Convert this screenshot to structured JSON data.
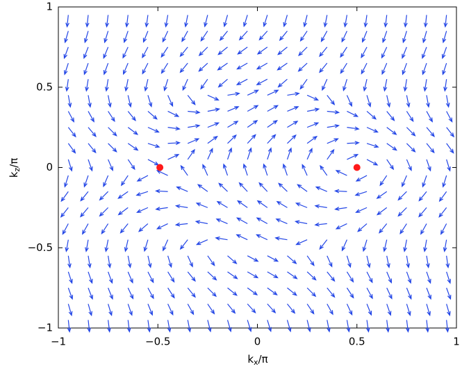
{
  "chart_data": {
    "type": "quiver",
    "xlabel": [
      "k",
      "x",
      "/π"
    ],
    "ylabel": [
      "k",
      "z",
      "/π"
    ],
    "xlim": [
      -1,
      1
    ],
    "ylim": [
      -1,
      1
    ],
    "xticks": [
      {
        "value": -1,
        "label": "−1"
      },
      {
        "value": -0.5,
        "label": "−0.5"
      },
      0,
      0.5,
      1
    ],
    "yticks": [
      {
        "value": -1,
        "label": "−1"
      },
      {
        "value": -0.5,
        "label": "−0.5"
      },
      0,
      0.5,
      1
    ],
    "color": "#2346e6",
    "x": [
      -0.95,
      -0.85,
      -0.75,
      -0.65,
      -0.55,
      -0.45,
      -0.35,
      -0.25,
      -0.15,
      -0.05,
      0.05,
      0.15,
      0.25,
      0.35,
      0.45,
      0.55,
      0.65,
      0.75,
      0.85,
      0.95
    ],
    "z": [
      0.95,
      0.85,
      0.75,
      0.65,
      0.55,
      0.45,
      0.35,
      0.25,
      0.15,
      0.05,
      -0.05,
      -0.15,
      -0.25,
      -0.35,
      -0.45,
      -0.55,
      -0.65,
      -0.75,
      -0.85,
      -0.95
    ],
    "angles": [
      [
        -96,
        -96,
        -97,
        -97,
        -98,
        -100,
        -101,
        -104,
        -106,
        -107,
        -107,
        -106,
        -104,
        -101,
        -100,
        -98,
        -97,
        -97,
        -96,
        -96
      ],
      [
        -106,
        -106,
        -107,
        -109,
        -112,
        -115,
        -119,
        -124,
        -129,
        -132,
        -132,
        -129,
        -124,
        -119,
        -115,
        -112,
        -109,
        -107,
        -106,
        -106
      ],
      [
        -110,
        -111,
        -112,
        -115,
        -118,
        -123,
        -129,
        -135,
        -141,
        -144,
        -144,
        -141,
        -135,
        -129,
        -123,
        -118,
        -115,
        -112,
        -111,
        -110
      ],
      [
        -108,
        -109,
        -110,
        -113,
        -117,
        -122,
        -129,
        -137,
        -145,
        -150,
        -150,
        -145,
        -137,
        -129,
        -122,
        -117,
        -113,
        -110,
        -109,
        -108
      ],
      [
        -98,
        -99,
        -99,
        -101,
        -103,
        -107,
        -114,
        -125,
        -139,
        -152,
        -152,
        -139,
        -125,
        -114,
        -107,
        -103,
        -101,
        -99,
        -99,
        -98
      ],
      [
        -80,
        -80,
        -79,
        -77,
        -73,
        -66,
        -52,
        -24,
        9,
        25,
        25,
        9,
        -24,
        -52,
        -66,
        -73,
        -77,
        -79,
        -80,
        -80
      ],
      [
        -62,
        -61,
        -57,
        -51,
        -41,
        -26,
        -6,
        11,
        23,
        29,
        29,
        23,
        11,
        -6,
        -26,
        -41,
        -51,
        -57,
        -61,
        -62
      ],
      [
        -52,
        -50,
        -45,
        -37,
        -24,
        -8,
        9,
        22,
        31,
        35,
        35,
        31,
        22,
        9,
        -8,
        -24,
        -37,
        -45,
        -50,
        -52
      ],
      [
        -54,
        -51,
        -45,
        -35,
        -18,
        3,
        23,
        36,
        44,
        47,
        47,
        44,
        36,
        23,
        3,
        -18,
        -35,
        -45,
        -51,
        -54
      ],
      [
        -73,
        -71,
        -67,
        -56,
        -28,
        25,
        55,
        66,
        71,
        72,
        72,
        71,
        66,
        55,
        25,
        -28,
        -56,
        -67,
        -71,
        -73
      ],
      [
        -107,
        -109,
        -113,
        -124,
        -152,
        155,
        125,
        114,
        109,
        108,
        108,
        109,
        114,
        125,
        155,
        -152,
        -124,
        -113,
        -109,
        -107
      ],
      [
        -126,
        -129,
        -135,
        -145,
        -162,
        177,
        157,
        144,
        136,
        133,
        133,
        136,
        144,
        157,
        177,
        -162,
        -145,
        -135,
        -129,
        -126
      ],
      [
        -128,
        -130,
        -135,
        -143,
        -156,
        -172,
        171,
        158,
        149,
        145,
        145,
        149,
        158,
        171,
        -172,
        -156,
        -143,
        -135,
        -130,
        -128
      ],
      [
        -118,
        -119,
        -123,
        -129,
        -139,
        -154,
        -174,
        169,
        157,
        151,
        151,
        157,
        169,
        -174,
        -154,
        -139,
        -129,
        -123,
        -119,
        -118
      ],
      [
        -100,
        -100,
        -101,
        -103,
        -107,
        -114,
        -128,
        -156,
        171,
        155,
        155,
        171,
        -156,
        -128,
        -114,
        -107,
        -103,
        -101,
        -100,
        -100
      ],
      [
        -82,
        -81,
        -81,
        -79,
        -77,
        -73,
        -66,
        -55,
        -41,
        -28,
        -28,
        -41,
        -55,
        -66,
        -73,
        -77,
        -79,
        -81,
        -81,
        -82
      ],
      [
        -72,
        -71,
        -70,
        -67,
        -63,
        -58,
        -51,
        -43,
        -35,
        -30,
        -30,
        -35,
        -43,
        -51,
        -58,
        -63,
        -67,
        -70,
        -71,
        -72
      ],
      [
        -70,
        -69,
        -68,
        -65,
        -62,
        -57,
        -51,
        -45,
        -39,
        -36,
        -36,
        -39,
        -45,
        -51,
        -57,
        -62,
        -65,
        -68,
        -69,
        -70
      ],
      [
        -74,
        -74,
        -73,
        -71,
        -68,
        -65,
        -61,
        -56,
        -51,
        -48,
        -48,
        -51,
        -56,
        -61,
        -65,
        -68,
        -71,
        -73,
        -74,
        -74
      ],
      [
        -84,
        -84,
        -83,
        -83,
        -82,
        -80,
        -79,
        -76,
        -74,
        -73,
        -73,
        -74,
        -76,
        -79,
        -80,
        -82,
        -83,
        -83,
        -84,
        -84
      ]
    ],
    "points": {
      "x": [
        -0.49,
        0.5
      ],
      "y": [
        0,
        0
      ],
      "color": "#ff1a1a"
    }
  }
}
